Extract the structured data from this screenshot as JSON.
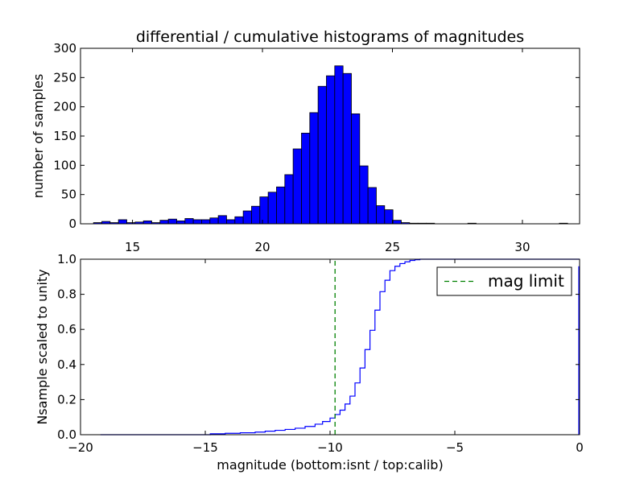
{
  "chart_data": [
    {
      "type": "bar",
      "subtype": "histogram",
      "title": "differential / cumulative histograms of magnitudes",
      "xlabel": "",
      "ylabel": "number of samples",
      "xlim": [
        13.0,
        32.2
      ],
      "ylim": [
        0,
        300
      ],
      "xticks": [
        15,
        20,
        25,
        30
      ],
      "yticks": [
        0,
        50,
        100,
        150,
        200,
        250,
        300
      ],
      "x_tick_labels_position": "bottom",
      "grid": false,
      "bar_color": "#0000ff",
      "edge_color": "#000000",
      "bin_width": 0.32,
      "bin_starts": [
        13.5,
        13.82,
        14.14,
        14.46,
        14.78,
        15.1,
        15.42,
        15.74,
        16.06,
        16.38,
        16.7,
        17.02,
        17.34,
        17.66,
        17.98,
        18.3,
        18.62,
        18.94,
        19.26,
        19.58,
        19.9,
        20.22,
        20.54,
        20.86,
        21.18,
        21.5,
        21.82,
        22.14,
        22.46,
        22.78,
        23.1,
        23.42,
        23.74,
        24.06,
        24.38,
        24.7,
        25.02,
        25.34,
        25.66,
        25.98,
        26.3,
        27.9,
        31.42
      ],
      "values": [
        2,
        4,
        2,
        7,
        2,
        3,
        5,
        2,
        6,
        8,
        5,
        9,
        7,
        7,
        10,
        14,
        7,
        12,
        22,
        30,
        46,
        54,
        63,
        84,
        128,
        155,
        190,
        235,
        253,
        270,
        257,
        188,
        99,
        62,
        31,
        24,
        6,
        2,
        1,
        1,
        1,
        1,
        1
      ]
    },
    {
      "type": "line",
      "subtype": "cumulative step",
      "title": "",
      "xlabel": "magnitude (bottom:isnt / top:calib)",
      "ylabel": "Nsample scaled to unity",
      "xlim": [
        -20,
        0
      ],
      "ylim": [
        0.0,
        1.0
      ],
      "xticks": [
        -20,
        -15,
        -10,
        -5,
        0
      ],
      "x_tick_labels": [
        "−20",
        "−15",
        "−10",
        "−5",
        "0"
      ],
      "yticks": [
        0.0,
        0.2,
        0.4,
        0.6,
        0.8,
        1.0
      ],
      "y_tick_labels": [
        "0.0",
        "0.2",
        "0.4",
        "0.6",
        "0.8",
        "1.0"
      ],
      "grid": false,
      "legend_position": "top-right",
      "series": [
        {
          "name": "",
          "style": "steps",
          "color": "#0000ff",
          "x": [
            -19.2,
            -14.8,
            -14.2,
            -13.6,
            -13.0,
            -12.6,
            -12.2,
            -11.8,
            -11.4,
            -11.0,
            -10.6,
            -10.3,
            -10.0,
            -9.8,
            -9.6,
            -9.4,
            -9.2,
            -9.0,
            -8.8,
            -8.6,
            -8.4,
            -8.2,
            -8.0,
            -7.8,
            -7.6,
            -7.4,
            -7.2,
            -7.0,
            -6.8,
            -6.6,
            -6.4,
            -6.2,
            -6.0,
            -5.8,
            -5.5,
            0.0
          ],
          "y": [
            0.0,
            0.005,
            0.008,
            0.011,
            0.015,
            0.02,
            0.025,
            0.03,
            0.037,
            0.047,
            0.06,
            0.075,
            0.095,
            0.115,
            0.14,
            0.175,
            0.22,
            0.295,
            0.38,
            0.485,
            0.595,
            0.71,
            0.815,
            0.88,
            0.935,
            0.96,
            0.975,
            0.985,
            0.993,
            0.997,
            1.0,
            1.0,
            1.0,
            1.0,
            1.0,
            1.0
          ]
        },
        {
          "name": "mag limit",
          "style": "dashed-vertical",
          "color": "#008000",
          "x": [
            -9.8,
            -9.8
          ],
          "y": [
            0.0,
            1.0
          ]
        }
      ]
    }
  ]
}
